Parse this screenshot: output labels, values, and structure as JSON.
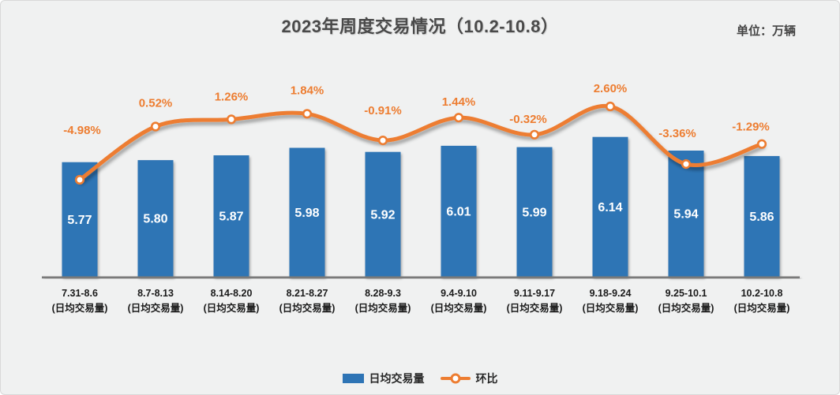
{
  "header": {
    "title": "2023年周度交易情况（10.2-10.8）",
    "unit": "单位：万辆"
  },
  "legend": [
    {
      "label": "日均交易量",
      "swatch": "bar-swatch"
    },
    {
      "label": "环比",
      "swatch": "line-with-dot-swatch"
    }
  ],
  "colors": {
    "bar": "#2E74B5",
    "line": "#ED7D31",
    "pct_label": "#ED7D31",
    "bar_value_label": "#ffffff",
    "axis_line": "#7a7a7a",
    "category_label": "#1a1a1a",
    "title_text": "#4a4a4a",
    "background": "#f0f1f1"
  },
  "chart_data": {
    "type": "bar",
    "title": "2023年周度交易情况（10.2-10.8）",
    "unit_note": "单位：万辆",
    "categories": [
      "7.31-8.6",
      "8.7-8.13",
      "8.14-8.20",
      "8.21-8.27",
      "8.28-9.3",
      "9.4-9.10",
      "9.11-9.17",
      "9.18-9.24",
      "9.25-10.1",
      "10.2-10.8"
    ],
    "category_sublabel": "(日均交易量)",
    "series": [
      {
        "name": "日均交易量",
        "type": "bar",
        "values": [
          5.77,
          5.8,
          5.87,
          5.98,
          5.92,
          6.01,
          5.99,
          6.14,
          5.94,
          5.86
        ],
        "value_labels": [
          "5.77",
          "5.80",
          "5.87",
          "5.98",
          "5.92",
          "6.01",
          "5.99",
          "6.14",
          "5.94",
          "5.86"
        ]
      },
      {
        "name": "环比",
        "type": "line",
        "values": [
          -4.98,
          0.52,
          1.26,
          1.84,
          -0.91,
          1.44,
          -0.32,
          2.6,
          -3.36,
          -1.29
        ],
        "value_labels": [
          "-4.98%",
          "0.52%",
          "1.26%",
          "1.84%",
          "-0.91%",
          "1.44%",
          "-0.32%",
          "2.60%",
          "-3.36%",
          "-1.29%"
        ]
      }
    ],
    "axes_hidden": true,
    "grid": false,
    "legend_position": "bottom",
    "smooth_line": true
  }
}
